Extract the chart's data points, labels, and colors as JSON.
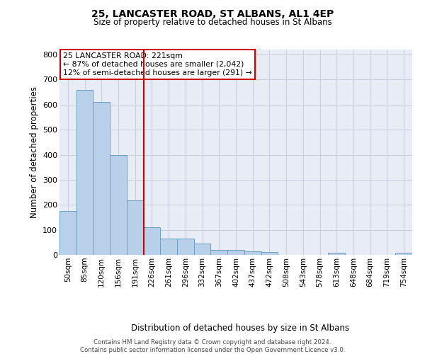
{
  "title": "25, LANCASTER ROAD, ST ALBANS, AL1 4EP",
  "subtitle": "Size of property relative to detached houses in St Albans",
  "xlabel": "Distribution of detached houses by size in St Albans",
  "ylabel": "Number of detached properties",
  "footer_line1": "Contains HM Land Registry data © Crown copyright and database right 2024.",
  "footer_line2": "Contains public sector information licensed under the Open Government Licence v3.0.",
  "bar_labels": [
    "50sqm",
    "85sqm",
    "120sqm",
    "156sqm",
    "191sqm",
    "226sqm",
    "261sqm",
    "296sqm",
    "332sqm",
    "367sqm",
    "402sqm",
    "437sqm",
    "472sqm",
    "508sqm",
    "543sqm",
    "578sqm",
    "613sqm",
    "648sqm",
    "684sqm",
    "719sqm",
    "754sqm"
  ],
  "bar_values": [
    175,
    660,
    610,
    400,
    218,
    110,
    65,
    65,
    45,
    20,
    20,
    15,
    12,
    0,
    0,
    0,
    8,
    0,
    0,
    0,
    8
  ],
  "bar_color": "#b8d0ea",
  "bar_edge_color": "#6a9ec0",
  "grid_color": "#c8d0e0",
  "background_color": "#e8edf5",
  "vline_bin_index": 5,
  "vline_color": "#cc0000",
  "annotation_line1": "25 LANCASTER ROAD: 221sqm",
  "annotation_line2": "← 87% of detached houses are smaller (2,042)",
  "annotation_line3": "12% of semi-detached houses are larger (291) →",
  "annotation_box_facecolor": "#ffffff",
  "annotation_box_edgecolor": "#cc0000",
  "ylim": [
    0,
    820
  ],
  "yticks": [
    0,
    100,
    200,
    300,
    400,
    500,
    600,
    700,
    800
  ]
}
